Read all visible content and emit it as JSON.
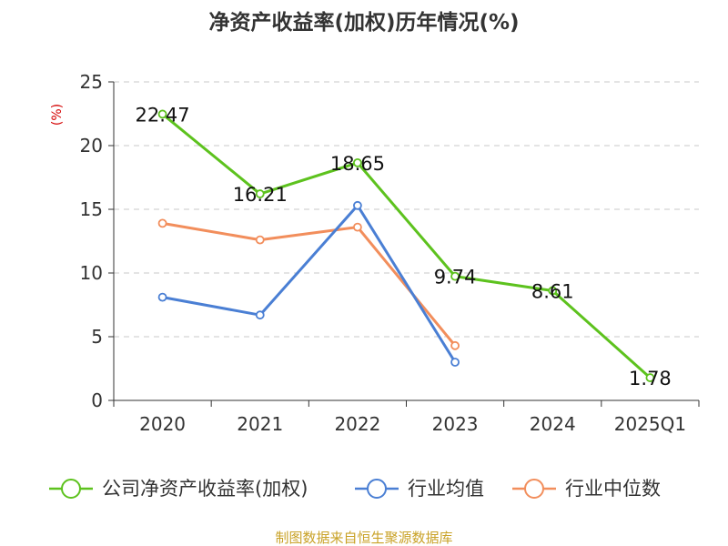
{
  "chart_data": {
    "type": "line",
    "title": "净资产收益率(加权)历年情况(%)",
    "ylabel": "(%)",
    "ylim": [
      0,
      25
    ],
    "yticks": [
      "0",
      "5",
      "10",
      "15",
      "20",
      "25"
    ],
    "categories": [
      "2020",
      "2021",
      "2022",
      "2023",
      "2024",
      "2025Q1"
    ],
    "grid": true,
    "legend_position": "bottom",
    "series": [
      {
        "name": "公司净资产收益率(加权)",
        "color": "#5dc21e",
        "values": [
          22.47,
          16.21,
          18.65,
          9.74,
          8.61,
          1.78
        ],
        "labels": [
          "22.47",
          "16.21",
          "18.65",
          "9.74",
          "8.61",
          "1.78"
        ]
      },
      {
        "name": "行业均值",
        "color": "#4a7fd4",
        "values": [
          8.1,
          6.7,
          15.3,
          3.0,
          null,
          null
        ]
      },
      {
        "name": "行业中位数",
        "color": "#f28e5c",
        "values": [
          13.9,
          12.6,
          13.6,
          4.3,
          null,
          null
        ]
      }
    ],
    "source": "制图数据来自恒生聚源数据库"
  }
}
